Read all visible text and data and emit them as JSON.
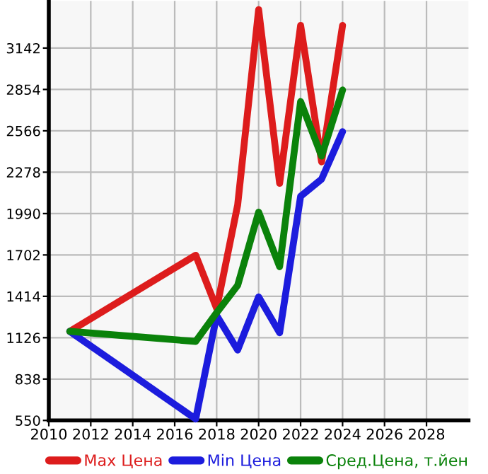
{
  "chart_data": {
    "type": "line",
    "x": [
      2011,
      2017,
      2018,
      2019,
      2020,
      2021,
      2022,
      2023,
      2024
    ],
    "series": [
      {
        "name": "Max Цена",
        "color": "#dd1c1c",
        "values": [
          1170,
          1700,
          1330,
          2050,
          3410,
          2200,
          3300,
          2350,
          3300
        ]
      },
      {
        "name": "Min Цена",
        "color": "#1c1cdd",
        "values": [
          1170,
          560,
          1280,
          1040,
          1410,
          1160,
          2110,
          2230,
          2560
        ]
      },
      {
        "name": "Сред.Цена, т.йен",
        "color": "#0a820a",
        "values": [
          1170,
          1100,
          1300,
          1490,
          2000,
          1620,
          2770,
          2390,
          2850
        ]
      }
    ],
    "xlim": [
      2010,
      2030
    ],
    "xticks": [
      2010,
      2012,
      2014,
      2016,
      2018,
      2020,
      2022,
      2024,
      2026,
      2028
    ],
    "ylim": [
      550,
      3470
    ],
    "yticks": [
      550,
      838,
      1126,
      1414,
      1702,
      1990,
      2278,
      2566,
      2854,
      3142
    ],
    "grid": true,
    "legend": "bottom",
    "marker": "none",
    "line_style": "solid"
  }
}
